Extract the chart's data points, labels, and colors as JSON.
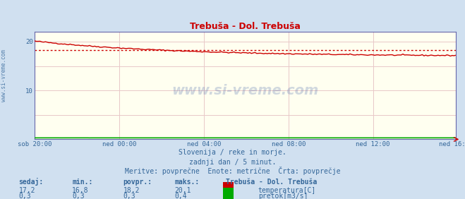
{
  "title": "Trebuša - Dol. Trebuša",
  "bg_color": "#d0e0f0",
  "plot_bg_color": "#fffff0",
  "grid_color": "#e8c8c8",
  "border_color": "#6666aa",
  "x_tick_labels": [
    "sob 20:00",
    "ned 00:00",
    "ned 04:00",
    "ned 08:00",
    "ned 12:00",
    "ned 16:00"
  ],
  "x_tick_positions": [
    0,
    48,
    96,
    144,
    192,
    239
  ],
  "y_ticks": [
    0,
    10,
    20
  ],
  "ylim": [
    0,
    22
  ],
  "xlim": [
    0,
    239
  ],
  "temp_avg_line": 18.2,
  "temp_color": "#cc0000",
  "flow_color": "#00aa00",
  "subtitle1": "Slovenija / reke in morje.",
  "subtitle2": "zadnji dan / 5 minut.",
  "subtitle3": "Meritve: povprečne  Enote: metrične  Črta: povprečje",
  "label_sedaj": "sedaj:",
  "label_min": "min.:",
  "label_povpr": "povpr.:",
  "label_maks": "maks.:",
  "temp_sedaj": "17,2",
  "temp_min": "16,8",
  "temp_povpr": "18,2",
  "temp_maks": "20,1",
  "flow_sedaj": "0,3",
  "flow_min": "0,3",
  "flow_povpr": "0,3",
  "flow_maks": "0,4",
  "legend_title": "Trebuša - Dol. Trebuša",
  "legend_temp": "temperatura[C]",
  "legend_flow": "pretok[m3/s]",
  "watermark": "www.si-vreme.com",
  "text_color": "#336699",
  "left_watermark": "www.si-vreme.com"
}
